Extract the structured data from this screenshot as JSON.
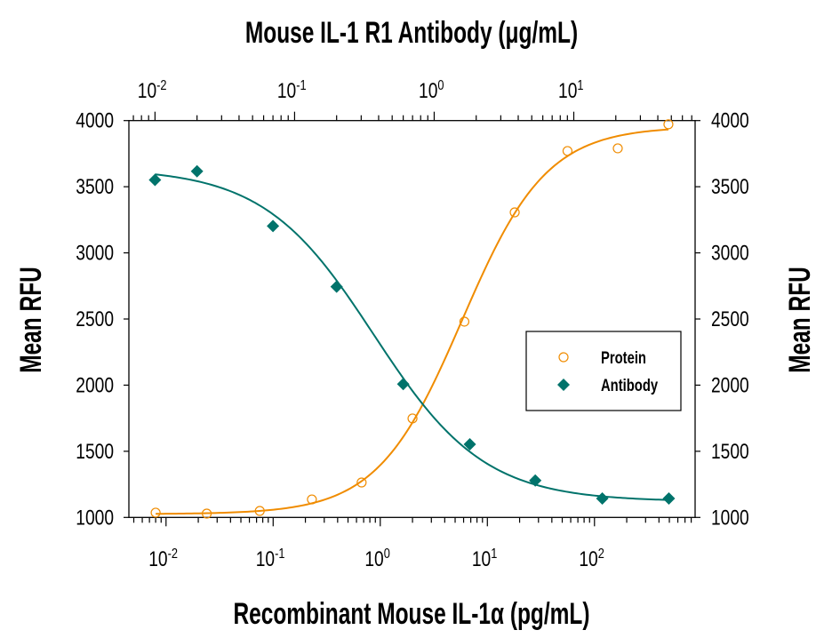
{
  "chart_data": {
    "type": "scatter",
    "title": "",
    "top_axis": {
      "label": "Mouse IL-1 R1 Antibody (μg/mL)",
      "scale": "log",
      "range": [
        0.0065,
        74
      ],
      "ticks": [
        0.01,
        0.1,
        1,
        10
      ],
      "tick_labels": [
        [
          "10",
          "-2"
        ],
        [
          "10",
          "-1"
        ],
        [
          "10",
          "0"
        ],
        [
          "10",
          "1"
        ]
      ]
    },
    "bottom_axis": {
      "label": "Recombinant Mouse IL-1α (pg/mL)",
      "scale": "log",
      "range": [
        0.0045,
        870
      ],
      "ticks": [
        0.01,
        0.1,
        1,
        10,
        100
      ],
      "tick_labels": [
        [
          "10",
          "-2"
        ],
        [
          "10",
          "-1"
        ],
        [
          "10",
          "0"
        ],
        [
          "10",
          "1"
        ],
        [
          "10",
          "2"
        ]
      ]
    },
    "left_axis": {
      "label": "Mean RFU",
      "range": [
        1000,
        4000
      ],
      "ticks": [
        1000,
        1500,
        2000,
        2500,
        3000,
        3500,
        4000
      ]
    },
    "right_axis": {
      "label": "Mean RFU",
      "range": [
        1000,
        4000
      ],
      "ticks": [
        1000,
        1500,
        2000,
        2500,
        3000,
        3500,
        4000
      ]
    },
    "grid": false,
    "legend": {
      "placement": "right-center"
    },
    "series": [
      {
        "name": "Protein",
        "axis": "bottom",
        "marker": "open-circle",
        "color": "#F08C00",
        "x": [
          0.008,
          0.024,
          0.075,
          0.23,
          0.67,
          2.0,
          6.1,
          18,
          56,
          165,
          490
        ],
        "y": [
          1036,
          1029,
          1049,
          1136,
          1264,
          1748,
          2480,
          3306,
          3770,
          3790,
          3972
        ],
        "fit": {
          "bottom": 1025,
          "top": 3955,
          "ec50": 5.8,
          "hill": 1.1
        }
      },
      {
        "name": "Antibody",
        "axis": "top",
        "marker": "filled-diamond",
        "color": "#00736B",
        "x": [
          0.01,
          0.02,
          0.07,
          0.2,
          0.6,
          1.8,
          5.3,
          16,
          48
        ],
        "y": [
          3551,
          3617,
          3203,
          2744,
          2008,
          1553,
          1279,
          1143,
          1143
        ],
        "fit": {
          "bottom": 1120,
          "top": 3640,
          "ec50": 0.37,
          "hill": 1.1
        }
      }
    ]
  }
}
